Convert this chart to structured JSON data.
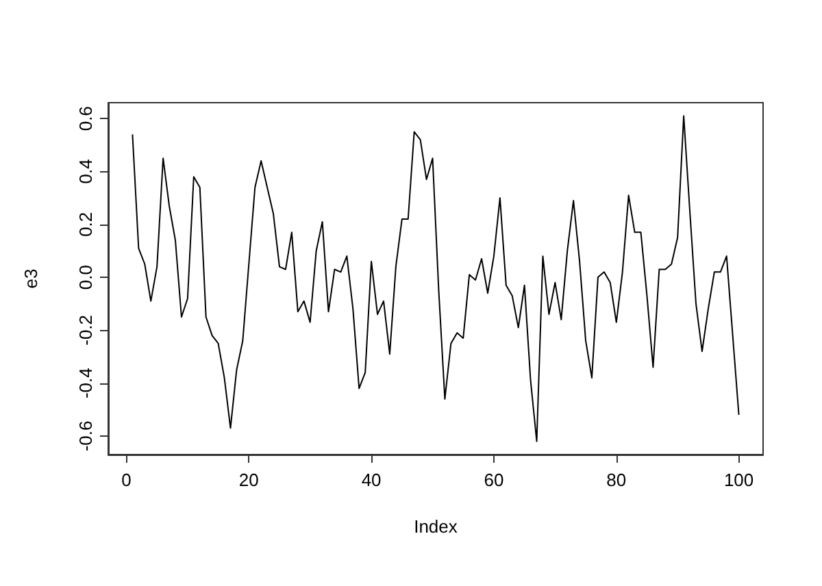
{
  "chart_data": {
    "type": "line",
    "xlabel": "Index",
    "ylabel": "e3",
    "x": [
      1,
      2,
      3,
      4,
      5,
      6,
      7,
      8,
      9,
      10,
      11,
      12,
      13,
      14,
      15,
      16,
      17,
      18,
      19,
      20,
      21,
      22,
      23,
      24,
      25,
      26,
      27,
      28,
      29,
      30,
      31,
      32,
      33,
      34,
      35,
      36,
      37,
      38,
      39,
      40,
      41,
      42,
      43,
      44,
      45,
      46,
      47,
      48,
      49,
      50,
      51,
      52,
      53,
      54,
      55,
      56,
      57,
      58,
      59,
      60,
      61,
      62,
      63,
      64,
      65,
      66,
      67,
      68,
      69,
      70,
      71,
      72,
      73,
      74,
      75,
      76,
      77,
      78,
      79,
      80,
      81,
      82,
      83,
      84,
      85,
      86,
      87,
      88,
      89,
      90,
      91,
      92,
      93,
      94,
      95,
      96,
      97,
      98,
      99,
      100
    ],
    "series": [
      {
        "color": "#000000",
        "values": [
          0.54,
          0.11,
          0.05,
          -0.09,
          0.04,
          0.45,
          0.27,
          0.14,
          -0.15,
          -0.08,
          0.38,
          0.34,
          -0.15,
          -0.22,
          -0.25,
          -0.38,
          -0.57,
          -0.35,
          -0.24,
          0.05,
          0.34,
          0.44,
          0.34,
          0.24,
          0.04,
          0.03,
          0.17,
          -0.13,
          -0.09,
          -0.17,
          0.1,
          0.21,
          -0.13,
          0.03,
          0.02,
          0.08,
          -0.12,
          -0.42,
          -0.36,
          0.06,
          -0.14,
          -0.09,
          -0.29,
          0.04,
          0.22,
          0.22,
          0.55,
          0.52,
          0.37,
          0.45,
          -0.05,
          -0.46,
          -0.25,
          -0.21,
          -0.23,
          0.01,
          -0.01,
          0.07,
          -0.06,
          0.08,
          0.3,
          -0.03,
          -0.07,
          -0.19,
          -0.03,
          -0.39,
          -0.62,
          0.08,
          -0.14,
          -0.02,
          -0.16,
          0.1,
          0.29,
          0.06,
          -0.24,
          -0.38,
          0,
          0.02,
          -0.02,
          -0.17,
          0.02,
          0.31,
          0.17,
          0.17,
          -0.07,
          -0.34,
          0.03,
          0.03,
          0.05,
          0.15,
          0.61,
          0.25,
          -0.1,
          -0.28,
          -0.12,
          0.02,
          0.02,
          0.08,
          -0.22,
          -0.52
        ]
      }
    ],
    "xlim": [
      -2.96,
      103.96
    ],
    "xticks": [
      0,
      20,
      40,
      60,
      80,
      100
    ],
    "ylim": [
      -0.67,
      0.66
    ],
    "yticks": [
      -0.6,
      -0.4,
      -0.2,
      {
        "value": 0,
        "label": "0.0"
      },
      0.2,
      0.4,
      0.6
    ],
    "grid": false,
    "marker": "none",
    "line_style": "solid"
  }
}
